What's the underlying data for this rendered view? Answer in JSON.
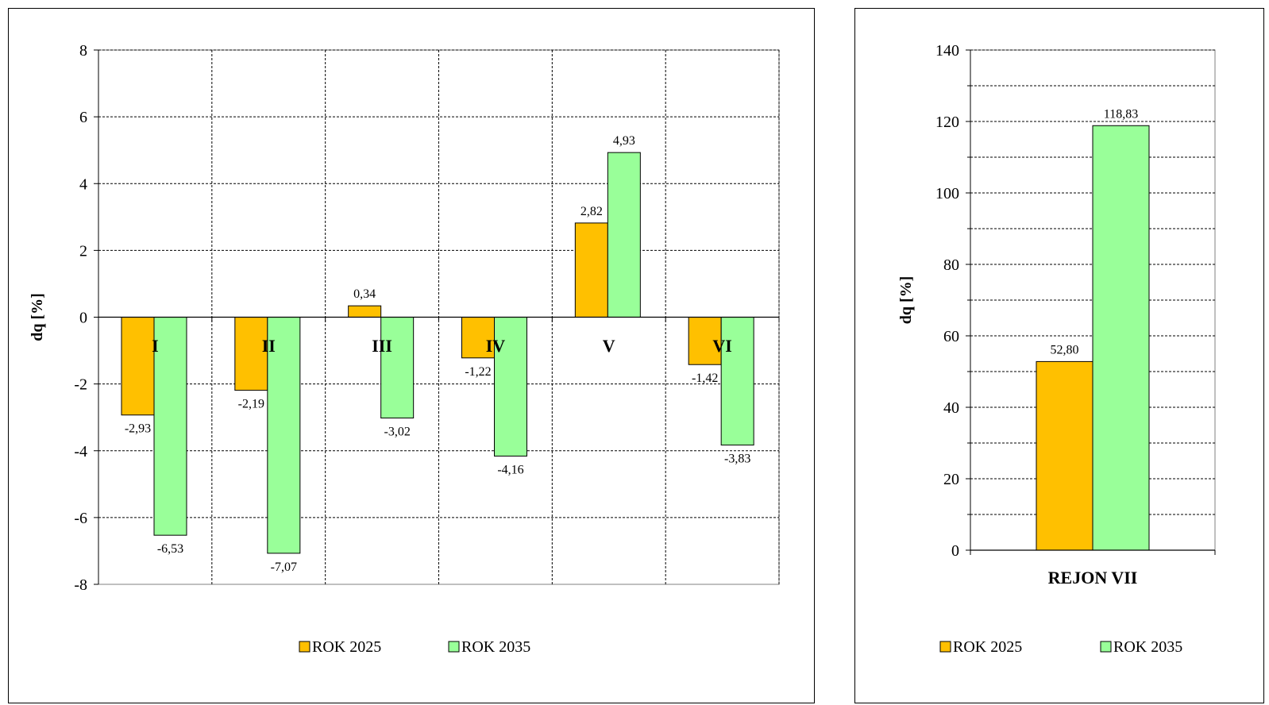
{
  "chart_data": [
    {
      "type": "bar",
      "title": "",
      "xlabel": "",
      "ylabel": "dq [%]",
      "ylim": [
        -8,
        8
      ],
      "yticks": [
        "8",
        "6",
        "4",
        "2",
        "0",
        "-2",
        "-4",
        "-6",
        "-8"
      ],
      "categories": [
        "I",
        "II",
        "III",
        "IV",
        "V",
        "VI"
      ],
      "grid": true,
      "legend_position": "bottom",
      "series": [
        {
          "name": "ROK 2025",
          "color": "#FFC000",
          "values": [
            -2.93,
            -2.19,
            0.34,
            -1.22,
            2.82,
            -1.42
          ],
          "labels": [
            "-2,93",
            "-2,19",
            "0,34",
            "-1,22",
            "2,82",
            "-1,42"
          ]
        },
        {
          "name": "ROK 2035",
          "color": "#99FF99",
          "values": [
            -6.53,
            -7.07,
            -3.02,
            -4.16,
            4.93,
            -3.83
          ],
          "labels": [
            "-6,53",
            "-7,07",
            "-3,02",
            "-4,16",
            "4,93",
            "-3,83"
          ]
        }
      ]
    },
    {
      "type": "bar",
      "title": "",
      "xlabel": "",
      "ylabel": "dq [%]",
      "ylim": [
        0,
        140
      ],
      "yticks": [
        "140",
        "120",
        "100",
        "80",
        "60",
        "40",
        "20",
        "0"
      ],
      "categories": [
        "REJON VII"
      ],
      "grid": true,
      "legend_position": "bottom",
      "series": [
        {
          "name": "ROK 2025",
          "color": "#FFC000",
          "values": [
            52.8
          ],
          "labels": [
            "52,80"
          ]
        },
        {
          "name": "ROK 2035",
          "color": "#99FF99",
          "values": [
            118.83
          ],
          "labels": [
            "118,83"
          ]
        }
      ]
    }
  ]
}
